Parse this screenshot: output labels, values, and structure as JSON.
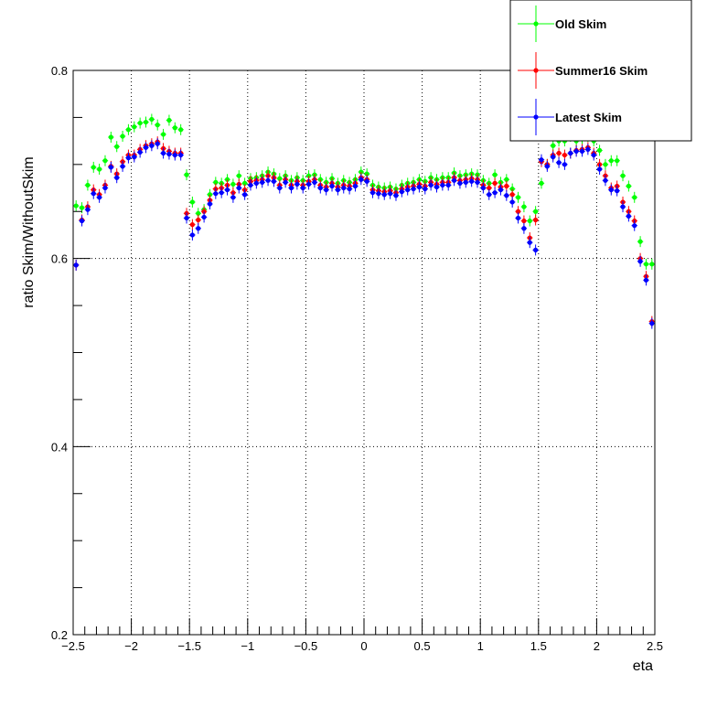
{
  "chart_data": {
    "type": "scatter",
    "xlabel": "eta",
    "ylabel": "ratio Skim/WithoutSkim",
    "xlim": [
      -2.5,
      2.5
    ],
    "ylim": [
      0.2,
      0.8
    ],
    "x_ticks": [
      -2.5,
      -2,
      -1.5,
      -1,
      -0.5,
      0,
      0.5,
      1,
      1.5,
      2,
      2.5
    ],
    "x_tick_labels": [
      "−2.5",
      "−2",
      "−1.5",
      "−1",
      "−0.5",
      "0",
      "0.5",
      "1",
      "1.5",
      "2",
      "2.5"
    ],
    "y_ticks": [
      0.2,
      0.4,
      0.6,
      0.8
    ],
    "y_tick_labels": [
      "0.2",
      "0.4",
      "0.6",
      "0.8"
    ],
    "grid": true,
    "legend_position": "top-right",
    "x": [
      -2.475,
      -2.425,
      -2.375,
      -2.325,
      -2.275,
      -2.225,
      -2.175,
      -2.125,
      -2.075,
      -2.025,
      -1.975,
      -1.925,
      -1.875,
      -1.825,
      -1.775,
      -1.725,
      -1.675,
      -1.625,
      -1.575,
      -1.525,
      -1.475,
      -1.425,
      -1.375,
      -1.325,
      -1.275,
      -1.225,
      -1.175,
      -1.125,
      -1.075,
      -1.025,
      -0.975,
      -0.925,
      -0.875,
      -0.825,
      -0.775,
      -0.725,
      -0.675,
      -0.625,
      -0.575,
      -0.525,
      -0.475,
      -0.425,
      -0.375,
      -0.325,
      -0.275,
      -0.225,
      -0.175,
      -0.125,
      -0.075,
      -0.025,
      0.025,
      0.075,
      0.125,
      0.175,
      0.225,
      0.275,
      0.325,
      0.375,
      0.425,
      0.475,
      0.525,
      0.575,
      0.625,
      0.675,
      0.725,
      0.775,
      0.825,
      0.875,
      0.925,
      0.975,
      1.025,
      1.075,
      1.125,
      1.175,
      1.225,
      1.275,
      1.325,
      1.375,
      1.425,
      1.475,
      1.525,
      1.575,
      1.625,
      1.675,
      1.725,
      1.775,
      1.825,
      1.875,
      1.925,
      1.975,
      2.025,
      2.075,
      2.125,
      2.175,
      2.225,
      2.275,
      2.325,
      2.375,
      2.425,
      2.475
    ],
    "series": [
      {
        "name": "Old Skim",
        "color": "#00ff00",
        "y": [
          0.656,
          0.654,
          0.678,
          0.697,
          0.695,
          0.704,
          0.729,
          0.719,
          0.73,
          0.737,
          0.74,
          0.744,
          0.745,
          0.748,
          0.742,
          0.732,
          0.747,
          0.739,
          0.737,
          0.689,
          0.66,
          0.648,
          0.652,
          0.668,
          0.681,
          0.68,
          0.684,
          0.679,
          0.688,
          0.68,
          0.685,
          0.686,
          0.688,
          0.692,
          0.69,
          0.685,
          0.688,
          0.683,
          0.686,
          0.683,
          0.688,
          0.689,
          0.684,
          0.681,
          0.685,
          0.68,
          0.683,
          0.681,
          0.684,
          0.692,
          0.69,
          0.678,
          0.676,
          0.675,
          0.676,
          0.674,
          0.678,
          0.68,
          0.681,
          0.684,
          0.682,
          0.686,
          0.684,
          0.686,
          0.686,
          0.691,
          0.688,
          0.689,
          0.69,
          0.689,
          0.683,
          0.68,
          0.689,
          0.681,
          0.684,
          0.674,
          0.665,
          0.655,
          0.64,
          0.65,
          0.68,
          0.7,
          0.72,
          0.725,
          0.725,
          0.73,
          0.725,
          0.727,
          0.73,
          0.725,
          0.715,
          0.7,
          0.704,
          0.704,
          0.688,
          0.677,
          0.665,
          0.618,
          0.594,
          0.594
        ]
      },
      {
        "name": "Summer16 Skim",
        "color": "#ff0000",
        "y": [
          0.593,
          0.641,
          0.655,
          0.673,
          0.668,
          0.678,
          0.698,
          0.69,
          0.703,
          0.71,
          0.71,
          0.716,
          0.72,
          0.722,
          0.724,
          0.717,
          0.714,
          0.712,
          0.712,
          0.648,
          0.636,
          0.641,
          0.65,
          0.662,
          0.674,
          0.675,
          0.678,
          0.67,
          0.679,
          0.673,
          0.682,
          0.683,
          0.684,
          0.688,
          0.686,
          0.678,
          0.684,
          0.678,
          0.682,
          0.678,
          0.682,
          0.684,
          0.678,
          0.676,
          0.68,
          0.676,
          0.678,
          0.677,
          0.68,
          0.686,
          0.684,
          0.673,
          0.672,
          0.671,
          0.672,
          0.67,
          0.674,
          0.676,
          0.677,
          0.679,
          0.677,
          0.681,
          0.679,
          0.681,
          0.681,
          0.686,
          0.683,
          0.684,
          0.685,
          0.684,
          0.678,
          0.675,
          0.68,
          0.676,
          0.677,
          0.668,
          0.65,
          0.64,
          0.622,
          0.641,
          0.703,
          0.7,
          0.71,
          0.712,
          0.71,
          0.712,
          0.715,
          0.716,
          0.718,
          0.712,
          0.7,
          0.688,
          0.675,
          0.677,
          0.66,
          0.65,
          0.64,
          0.6,
          0.581,
          0.533
        ]
      },
      {
        "name": "Latest Skim",
        "color": "#0000ff",
        "y": [
          0.593,
          0.64,
          0.652,
          0.669,
          0.665,
          0.675,
          0.697,
          0.686,
          0.698,
          0.707,
          0.708,
          0.713,
          0.718,
          0.72,
          0.722,
          0.712,
          0.711,
          0.71,
          0.71,
          0.643,
          0.625,
          0.632,
          0.644,
          0.658,
          0.669,
          0.67,
          0.673,
          0.665,
          0.675,
          0.668,
          0.678,
          0.68,
          0.681,
          0.683,
          0.682,
          0.675,
          0.681,
          0.675,
          0.679,
          0.675,
          0.679,
          0.681,
          0.675,
          0.673,
          0.677,
          0.673,
          0.675,
          0.674,
          0.677,
          0.684,
          0.682,
          0.67,
          0.669,
          0.668,
          0.669,
          0.667,
          0.671,
          0.673,
          0.674,
          0.676,
          0.674,
          0.678,
          0.676,
          0.678,
          0.678,
          0.683,
          0.68,
          0.681,
          0.682,
          0.681,
          0.675,
          0.668,
          0.67,
          0.673,
          0.667,
          0.66,
          0.643,
          0.632,
          0.617,
          0.609,
          0.705,
          0.698,
          0.708,
          0.702,
          0.7,
          0.712,
          0.714,
          0.714,
          0.716,
          0.71,
          0.695,
          0.683,
          0.673,
          0.672,
          0.655,
          0.645,
          0.635,
          0.597,
          0.577,
          0.531
        ]
      }
    ]
  }
}
